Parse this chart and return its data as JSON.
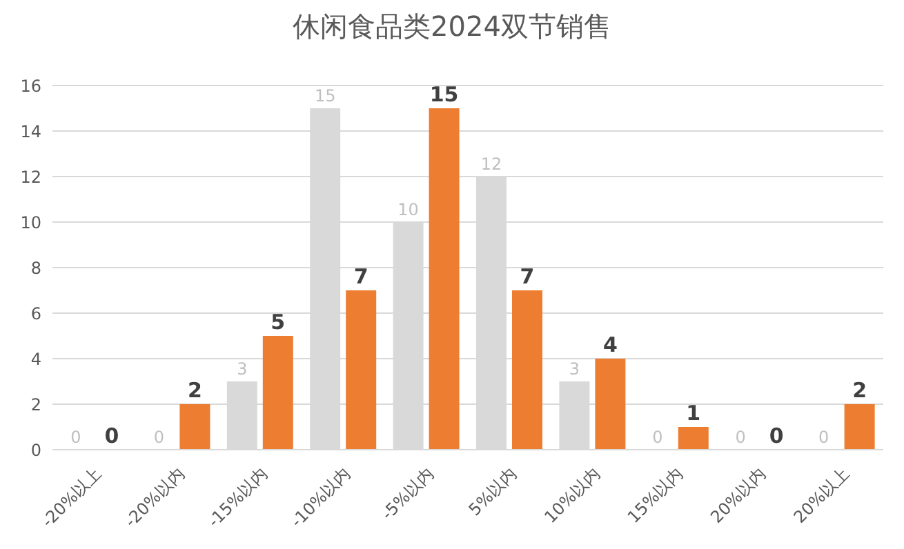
{
  "chart_data": {
    "type": "bar",
    "title": "休闲食品类2024双节销售",
    "categories": [
      "-20%以上",
      "-20%以内",
      "-15%以内",
      "-10%以内",
      "-5%以内",
      "5%以内",
      "10%以内",
      "15%以内",
      "20%以内",
      "20%以上"
    ],
    "series": [
      {
        "color": "#d9d9d9",
        "values": [
          0,
          0,
          3,
          15,
          10,
          12,
          3,
          0,
          0,
          0
        ]
      },
      {
        "color": "#ed7d31",
        "values": [
          0,
          2,
          5,
          7,
          15,
          7,
          4,
          1,
          0,
          2
        ]
      }
    ],
    "ylim": [
      0,
      16
    ],
    "yticks": [
      0,
      2,
      4,
      6,
      8,
      10,
      12,
      14,
      16
    ],
    "grid": "y",
    "data_labels": true
  }
}
